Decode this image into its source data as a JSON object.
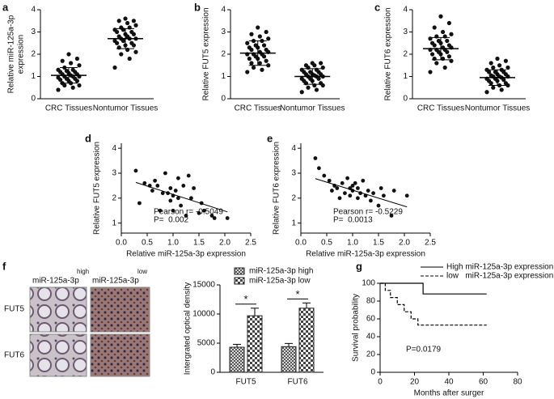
{
  "panel_labels": [
    "a",
    "b",
    "c",
    "d",
    "e",
    "f",
    "g"
  ],
  "images": {
    "columns": [
      {
        "label": "miR-125a-3p",
        "sup": "high"
      },
      {
        "label": "miR-125a-3p",
        "sup": "low"
      }
    ],
    "rows": [
      "FUT5",
      "FUT6"
    ]
  },
  "chart_data": [
    {
      "type": "strip",
      "ylabel": [
        "Relative miR-125a-3p",
        "expression"
      ],
      "categories": [
        "CRC Tissues",
        "Nontumor Tissues"
      ],
      "values": [
        [
          0.4,
          0.5,
          0.6,
          0.6,
          0.7,
          0.7,
          0.8,
          0.8,
          0.85,
          0.9,
          0.9,
          0.95,
          1.0,
          1.0,
          1.0,
          1.05,
          1.1,
          1.1,
          1.15,
          1.2,
          1.2,
          1.25,
          1.3,
          1.3,
          1.4,
          1.5,
          1.6,
          1.7,
          1.8,
          2.0
        ],
        [
          1.4,
          1.8,
          2.0,
          2.1,
          2.2,
          2.3,
          2.4,
          2.4,
          2.5,
          2.5,
          2.6,
          2.6,
          2.7,
          2.7,
          2.7,
          2.8,
          2.8,
          2.9,
          2.9,
          3.0,
          3.0,
          3.1,
          3.1,
          3.2,
          3.2,
          3.3,
          3.4,
          3.5,
          3.5,
          3.6
        ]
      ],
      "means": [
        1.05,
        2.7
      ],
      "sds": [
        0.35,
        0.45
      ],
      "ylim": [
        0,
        4
      ],
      "yticks": [
        0,
        1,
        2,
        3,
        4
      ]
    },
    {
      "type": "strip",
      "ylabel": [
        "Relative FUT5 expression"
      ],
      "categories": [
        "CRC Tissues",
        "Nontumor Tissues"
      ],
      "values": [
        [
          1.2,
          1.3,
          1.4,
          1.5,
          1.6,
          1.6,
          1.7,
          1.8,
          1.8,
          1.9,
          1.9,
          2.0,
          2.0,
          2.0,
          2.1,
          2.1,
          2.2,
          2.2,
          2.3,
          2.3,
          2.4,
          2.4,
          2.5,
          2.6,
          2.6,
          2.7,
          2.8,
          2.9,
          3.0,
          3.2
        ],
        [
          0.3,
          0.4,
          0.5,
          0.6,
          0.6,
          0.7,
          0.7,
          0.8,
          0.8,
          0.9,
          0.9,
          0.9,
          1.0,
          1.0,
          1.0,
          1.05,
          1.1,
          1.1,
          1.1,
          1.2,
          1.2,
          1.2,
          1.3,
          1.3,
          1.4,
          1.4,
          1.5,
          1.5,
          1.6,
          1.6
        ]
      ],
      "means": [
        2.05,
        1.0
      ],
      "sds": [
        0.55,
        0.35
      ],
      "ylim": [
        0,
        4
      ],
      "yticks": [
        0,
        1,
        2,
        3,
        4
      ]
    },
    {
      "type": "strip",
      "ylabel": [
        "Relative FUT6 expression"
      ],
      "categories": [
        "CRC Tissues",
        "Nontumor Tissues"
      ],
      "values": [
        [
          1.2,
          1.4,
          1.6,
          1.7,
          1.8,
          1.8,
          1.9,
          2.0,
          2.0,
          2.1,
          2.1,
          2.2,
          2.2,
          2.2,
          2.3,
          2.3,
          2.4,
          2.4,
          2.5,
          2.5,
          2.6,
          2.6,
          2.7,
          2.8,
          2.8,
          2.9,
          3.0,
          3.2,
          3.4,
          3.7
        ],
        [
          0.3,
          0.4,
          0.5,
          0.6,
          0.6,
          0.7,
          0.7,
          0.8,
          0.8,
          0.85,
          0.9,
          0.9,
          0.95,
          1.0,
          1.0,
          1.0,
          1.05,
          1.1,
          1.1,
          1.2,
          1.2,
          1.2,
          1.3,
          1.3,
          1.4,
          1.4,
          1.5,
          1.6,
          1.7,
          1.8
        ]
      ],
      "means": [
        2.25,
        0.95
      ],
      "sds": [
        0.5,
        0.35
      ],
      "ylim": [
        0,
        4
      ],
      "yticks": [
        0,
        1,
        2,
        3,
        4
      ]
    },
    {
      "type": "scatter",
      "xlabel": "Relative miR-125a-3p expression",
      "ylabel": [
        "Relative FUT5 expression"
      ],
      "x": [
        0.28,
        0.35,
        0.45,
        0.55,
        0.6,
        0.65,
        0.7,
        0.75,
        0.8,
        0.85,
        0.9,
        0.95,
        0.95,
        1.0,
        1.0,
        1.05,
        1.1,
        1.1,
        1.15,
        1.2,
        1.25,
        1.3,
        1.35,
        1.4,
        1.5,
        1.55,
        1.6,
        1.75,
        1.8,
        2.05
      ],
      "y": [
        3.1,
        1.8,
        2.6,
        2.5,
        2.3,
        2.7,
        2.5,
        1.5,
        2.2,
        3.0,
        2.2,
        2.4,
        1.9,
        2.1,
        1.5,
        2.3,
        2.0,
        2.8,
        1.7,
        2.5,
        1.3,
        2.9,
        2.0,
        2.4,
        1.4,
        1.8,
        1.5,
        1.3,
        1.2,
        1.2
      ],
      "fit": {
        "x": [
          0.28,
          2.05
        ],
        "y": [
          2.63,
          1.45
        ]
      },
      "annotations": [
        "Pearson r= -0.5049",
        "P=  0.002"
      ],
      "xlim": [
        0,
        2.5
      ],
      "xticks": [
        0.0,
        0.5,
        1.0,
        1.5,
        2.0,
        2.5
      ],
      "ylim": [
        0.6,
        4.2
      ],
      "yticks": [
        1,
        2,
        3,
        4
      ]
    },
    {
      "type": "scatter",
      "xlabel": "Relative miR-125a-3p expression",
      "ylabel": [
        "Relative FUT6 expression"
      ],
      "x": [
        0.28,
        0.35,
        0.45,
        0.55,
        0.6,
        0.65,
        0.7,
        0.75,
        0.8,
        0.85,
        0.9,
        0.95,
        0.95,
        1.0,
        1.0,
        1.05,
        1.1,
        1.1,
        1.15,
        1.2,
        1.25,
        1.3,
        1.35,
        1.4,
        1.5,
        1.55,
        1.6,
        1.75,
        1.8,
        2.05
      ],
      "y": [
        3.6,
        3.2,
        2.9,
        2.7,
        2.3,
        2.5,
        2.4,
        2.0,
        2.6,
        2.2,
        2.8,
        2.4,
        2.1,
        2.3,
        2.5,
        2.6,
        2.0,
        2.4,
        2.2,
        2.7,
        2.1,
        2.3,
        1.9,
        2.2,
        1.7,
        2.4,
        2.1,
        1.3,
        2.3,
        2.1
      ],
      "fit": {
        "x": [
          0.28,
          2.05
        ],
        "y": [
          2.78,
          1.65
        ]
      },
      "annotations": [
        "Pearson r= -0.5229",
        "P=  0.0013"
      ],
      "xlim": [
        0,
        2.5
      ],
      "xticks": [
        0.0,
        0.5,
        1.0,
        1.5,
        2.0,
        2.5
      ],
      "ylim": [
        0.6,
        4.2
      ],
      "yticks": [
        1,
        2,
        3,
        4
      ]
    },
    {
      "type": "bar",
      "ylabel": [
        "Intergrated optical density"
      ],
      "categories": [
        "FUT5",
        "FUT6"
      ],
      "series": [
        {
          "name": "miR-125a-3p high",
          "values": [
            4300,
            4400
          ],
          "errors": [
            500,
            550
          ]
        },
        {
          "name": "miR-125a-3p low",
          "values": [
            9700,
            11000
          ],
          "errors": [
            1300,
            900
          ]
        }
      ],
      "annotations": [
        "*",
        "*"
      ],
      "ylim": [
        0,
        15000
      ],
      "yticks": [
        0,
        5000,
        10000,
        15000
      ]
    },
    {
      "type": "survival",
      "xlabel": "Months after surger",
      "ylabel": [
        "Survival probability"
      ],
      "series": [
        {
          "name": "High miR-125a-3p expression",
          "dash": false,
          "x": [
            0,
            25,
            25,
            62
          ],
          "y": [
            100,
            100,
            88,
            88
          ]
        },
        {
          "name": "low   miR-125a-3p expression",
          "dash": true,
          "x": [
            0,
            3,
            3,
            6,
            6,
            10,
            10,
            14,
            14,
            18,
            18,
            22,
            22,
            62
          ],
          "y": [
            100,
            100,
            92,
            92,
            84,
            84,
            76,
            76,
            68,
            68,
            60,
            60,
            53,
            53
          ]
        }
      ],
      "annotations": [
        "P=0.0179"
      ],
      "xlim": [
        0,
        80
      ],
      "xticks": [
        0,
        20,
        40,
        60,
        80
      ],
      "ylim": [
        0,
        100
      ],
      "yticks": [
        0,
        20,
        40,
        60,
        80,
        100
      ]
    }
  ]
}
